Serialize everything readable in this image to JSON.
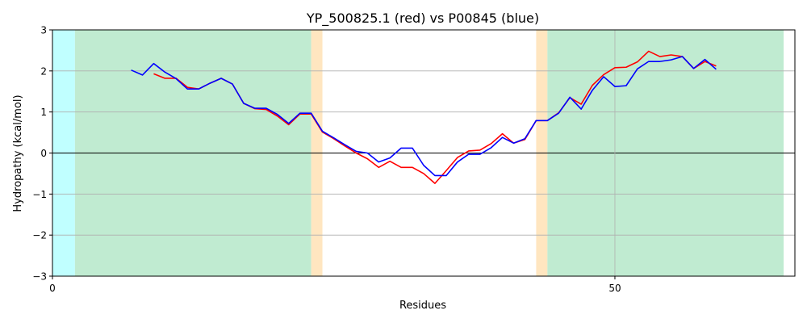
{
  "chart_data": {
    "type": "line",
    "title": "YP_500825.1 (red) vs P00845 (blue)",
    "xlabel": "Residues",
    "ylabel": "Hydropathy (kcal/mol)",
    "xlim": [
      0,
      66
    ],
    "ylim": [
      -3,
      3
    ],
    "x_ticks": [
      0,
      50
    ],
    "y_ticks": [
      -3,
      -2,
      -1,
      0,
      1,
      2,
      3
    ],
    "grid": true,
    "regions": [
      {
        "type": "cyan",
        "color": "#c0ffff",
        "x_start": 0,
        "x_end": 2
      },
      {
        "type": "green",
        "color": "#c0ebd1",
        "x_start": 2,
        "x_end": 23
      },
      {
        "type": "orange",
        "color": "#ffe6c0",
        "x_start": 23,
        "x_end": 24
      },
      {
        "type": "orange",
        "color": "#ffe6c0",
        "x_start": 43,
        "x_end": 44
      },
      {
        "type": "green",
        "color": "#c0ebd1",
        "x_start": 44,
        "x_end": 65
      }
    ],
    "series": [
      {
        "color": "#ff0000",
        "x": [
          9,
          10,
          11,
          12,
          13,
          14,
          15,
          16,
          17,
          18,
          19,
          20,
          21,
          22,
          23,
          24,
          25,
          26,
          27,
          28,
          29,
          30,
          31,
          32,
          33,
          34,
          35,
          36,
          37,
          38,
          39,
          40,
          41,
          42,
          43,
          44,
          45,
          46,
          47,
          48,
          49,
          50,
          51,
          52,
          53,
          54,
          55,
          56,
          57,
          58,
          59
        ],
        "values": [
          1.93,
          1.82,
          1.82,
          1.6,
          1.56,
          1.7,
          1.82,
          1.68,
          1.21,
          1.08,
          1.06,
          0.9,
          0.69,
          0.95,
          0.95,
          0.51,
          0.35,
          0.17,
          0.0,
          -0.14,
          -0.35,
          -0.2,
          -0.35,
          -0.35,
          -0.5,
          -0.74,
          -0.43,
          -0.11,
          0.05,
          0.07,
          0.23,
          0.47,
          0.24,
          0.33,
          0.79,
          0.79,
          0.98,
          1.35,
          1.19,
          1.65,
          1.91,
          2.08,
          2.09,
          2.22,
          2.48,
          2.35,
          2.39,
          2.35,
          2.06,
          2.23,
          2.12
        ]
      },
      {
        "color": "#0000ff",
        "x": [
          7,
          8,
          9,
          10,
          11,
          12,
          13,
          14,
          15,
          16,
          17,
          18,
          19,
          20,
          21,
          22,
          23,
          24,
          25,
          26,
          27,
          28,
          29,
          30,
          31,
          32,
          33,
          34,
          35,
          36,
          37,
          38,
          39,
          40,
          41,
          42,
          43,
          44,
          45,
          46,
          47,
          48,
          49,
          50,
          51,
          52,
          53,
          54,
          55,
          56,
          57,
          58,
          59
        ],
        "values": [
          2.02,
          1.9,
          2.18,
          1.97,
          1.81,
          1.56,
          1.56,
          1.7,
          1.82,
          1.68,
          1.21,
          1.09,
          1.09,
          0.94,
          0.72,
          0.97,
          0.97,
          0.53,
          0.37,
          0.2,
          0.04,
          0.0,
          -0.22,
          -0.12,
          0.12,
          0.12,
          -0.3,
          -0.55,
          -0.55,
          -0.22,
          -0.03,
          -0.03,
          0.13,
          0.38,
          0.24,
          0.35,
          0.79,
          0.79,
          0.97,
          1.36,
          1.07,
          1.53,
          1.86,
          1.62,
          1.64,
          2.05,
          2.23,
          2.23,
          2.27,
          2.35,
          2.06,
          2.28,
          2.04
        ]
      }
    ]
  }
}
